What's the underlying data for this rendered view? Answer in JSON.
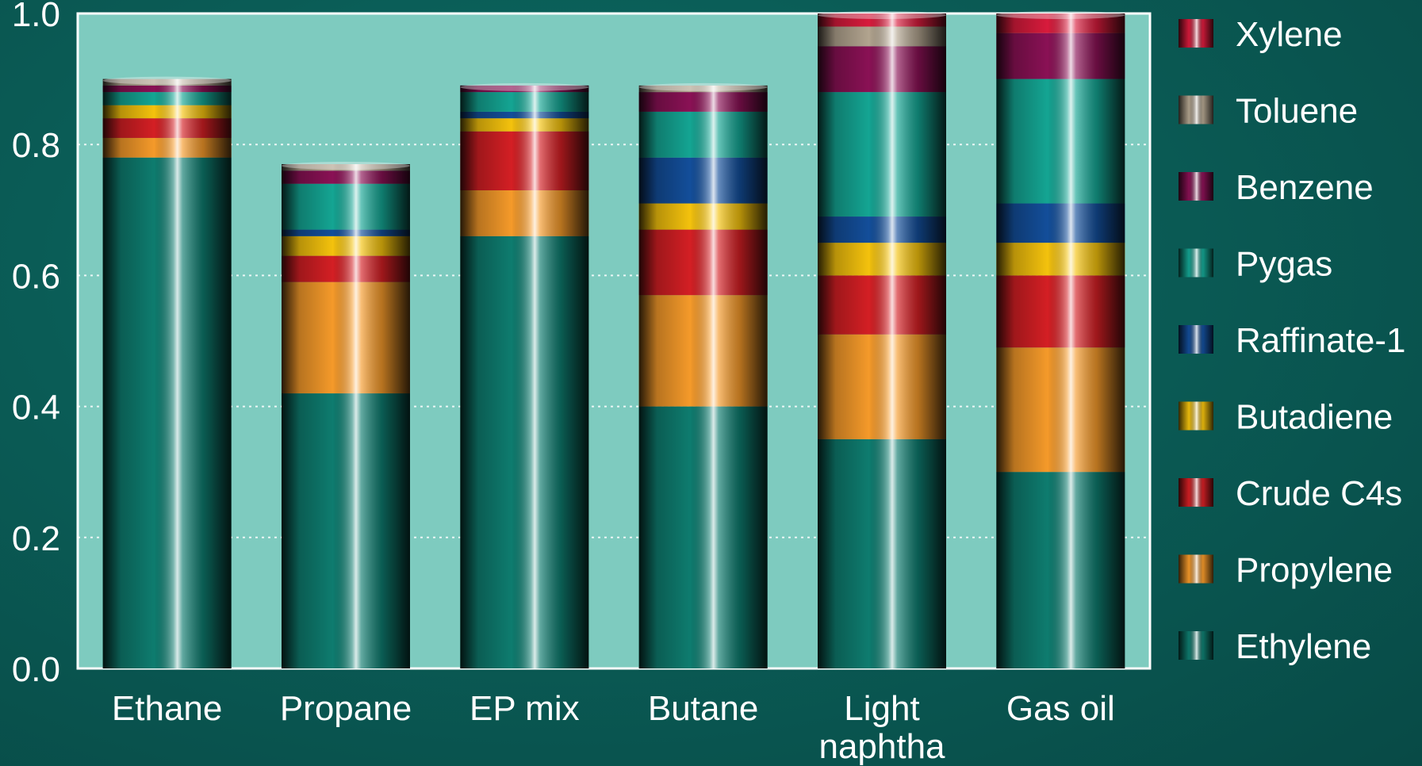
{
  "chart_data": {
    "type": "bar",
    "stacked": true,
    "categories": [
      [
        "Ethane"
      ],
      [
        "Propane"
      ],
      [
        "EP mix"
      ],
      [
        "Butane"
      ],
      [
        "Light",
        "naphtha"
      ],
      [
        "Gas oil"
      ]
    ],
    "series": [
      {
        "name": "Ethylene",
        "color": "#0e7c6f",
        "values": [
          0.78,
          0.42,
          0.66,
          0.4,
          0.35,
          0.3
        ]
      },
      {
        "name": "Propylene",
        "color": "#f59a2a",
        "values": [
          0.03,
          0.17,
          0.07,
          0.17,
          0.16,
          0.19
        ]
      },
      {
        "name": "Crude C4s",
        "color": "#d41f24",
        "values": [
          0.03,
          0.04,
          0.09,
          0.1,
          0.09,
          0.11
        ]
      },
      {
        "name": "Butadiene",
        "color": "#f4c20d",
        "values": [
          0.02,
          0.03,
          0.02,
          0.04,
          0.05,
          0.05
        ]
      },
      {
        "name": "Raffinate-1",
        "color": "#134e9a",
        "values": [
          0.0,
          0.01,
          0.01,
          0.07,
          0.04,
          0.06
        ]
      },
      {
        "name": "Pygas",
        "color": "#14a593",
        "values": [
          0.02,
          0.07,
          0.03,
          0.07,
          0.19,
          0.19
        ]
      },
      {
        "name": "Benzene",
        "color": "#8a1155",
        "values": [
          0.01,
          0.02,
          0.01,
          0.03,
          0.07,
          0.07
        ]
      },
      {
        "name": "Toluene",
        "color": "#b2a48f",
        "values": [
          0.01,
          0.01,
          0.0,
          0.01,
          0.03,
          0.0
        ]
      },
      {
        "name": "Xylene",
        "color": "#d81b3c",
        "values": [
          0.0,
          0.0,
          0.0,
          0.0,
          0.02,
          0.03
        ]
      }
    ],
    "legend_order": [
      "Xylene",
      "Toluene",
      "Benzene",
      "Pygas",
      "Raffinate-1",
      "Butadiene",
      "Crude C4s",
      "Propylene",
      "Ethylene"
    ],
    "yticks": [
      "0.0",
      "0.2",
      "0.4",
      "0.6",
      "0.8",
      "1.0"
    ],
    "ylim": [
      0,
      1.0
    ],
    "title": "",
    "xlabel": "",
    "ylabel": "",
    "grid": true,
    "legend_position": "right",
    "plot_background": "#7ecbbf"
  }
}
